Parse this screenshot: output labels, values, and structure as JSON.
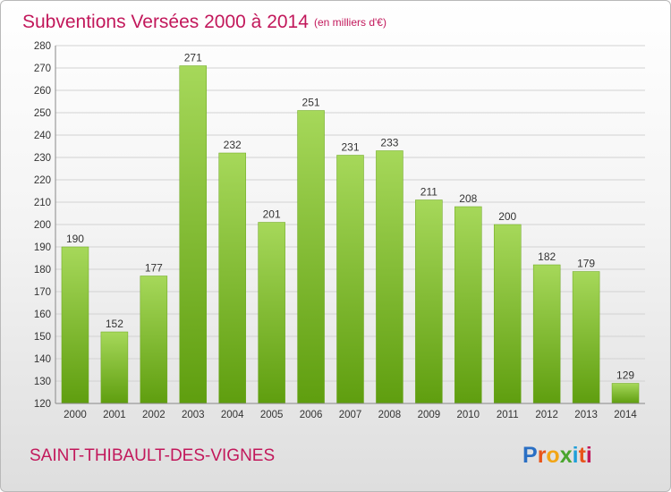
{
  "header": {
    "title": "Subventions Versées 2000 à 2014",
    "unit": "(en milliers d'€)"
  },
  "footer": {
    "commune": "SAINT-THIBAULT-DES-VIGNES",
    "logo": "Proxiti"
  },
  "colors": {
    "accent": "#c2185b",
    "bar_light": "#a6d85a",
    "bar_dark": "#5f9e0f"
  },
  "chart_data": {
    "type": "bar",
    "title": "Subventions Versées 2000 à 2014",
    "subtitle": "(en milliers d'€)",
    "categories": [
      "2000",
      "2001",
      "2002",
      "2003",
      "2004",
      "2005",
      "2006",
      "2007",
      "2008",
      "2009",
      "2010",
      "2011",
      "2012",
      "2013",
      "2014"
    ],
    "values": [
      190,
      152,
      177,
      271,
      232,
      201,
      251,
      231,
      233,
      211,
      208,
      200,
      182,
      179,
      129
    ],
    "ylim": [
      120,
      280
    ],
    "yticks": [
      120,
      130,
      140,
      150,
      160,
      170,
      180,
      190,
      200,
      210,
      220,
      230,
      240,
      250,
      260,
      270,
      280
    ],
    "grid": true,
    "legend": "none"
  }
}
